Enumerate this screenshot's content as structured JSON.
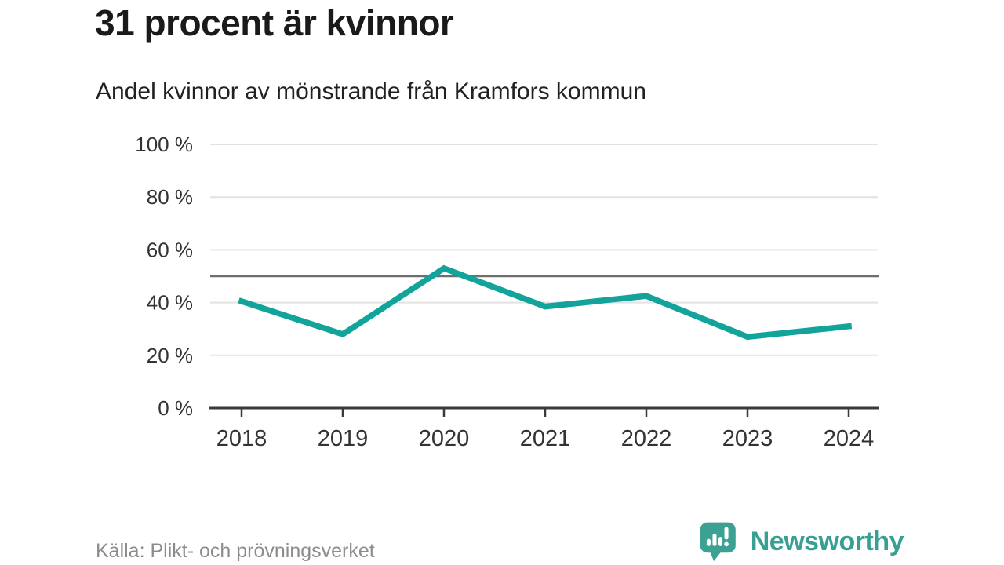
{
  "header": {
    "title": "31 procent är kvinnor",
    "subtitle": "Andel kvinnor av mönstrande från Kramfors kommun"
  },
  "chart_data": {
    "type": "line",
    "title": "31 procent är kvinnor",
    "subtitle": "Andel kvinnor av mönstrande från Kramfors kommun",
    "categories": [
      "2018",
      "2019",
      "2020",
      "2021",
      "2022",
      "2023",
      "2024"
    ],
    "series": [
      {
        "name": "Andel kvinnor av mönstrande",
        "values": [
          40.5,
          28,
          53,
          38.5,
          42.5,
          27,
          31
        ]
      }
    ],
    "ylabel": "",
    "xlabel": "",
    "ylim": [
      0,
      100
    ],
    "yticks": [
      0,
      20,
      40,
      60,
      80,
      100
    ],
    "ytick_labels": [
      "0 %",
      "20 %",
      "40 %",
      "60 %",
      "80 %",
      "100 %"
    ],
    "reference_line": 50,
    "grid": "horizontal",
    "legend_position": "none"
  },
  "colors": {
    "line": "#12a49b",
    "reference_line": "#6e6e6e",
    "gridline": "#e2e2e2",
    "axis": "#3a3a3a",
    "tick_label": "#333333",
    "brand_teal": "#3ca193"
  },
  "footer": {
    "source": "Källa: Plikt- och prövningsverket",
    "brand": "Newsworthy"
  },
  "icons": {
    "newsworthy_bubble": "speech-bubble-with-bar-chart-and-exclamation"
  }
}
